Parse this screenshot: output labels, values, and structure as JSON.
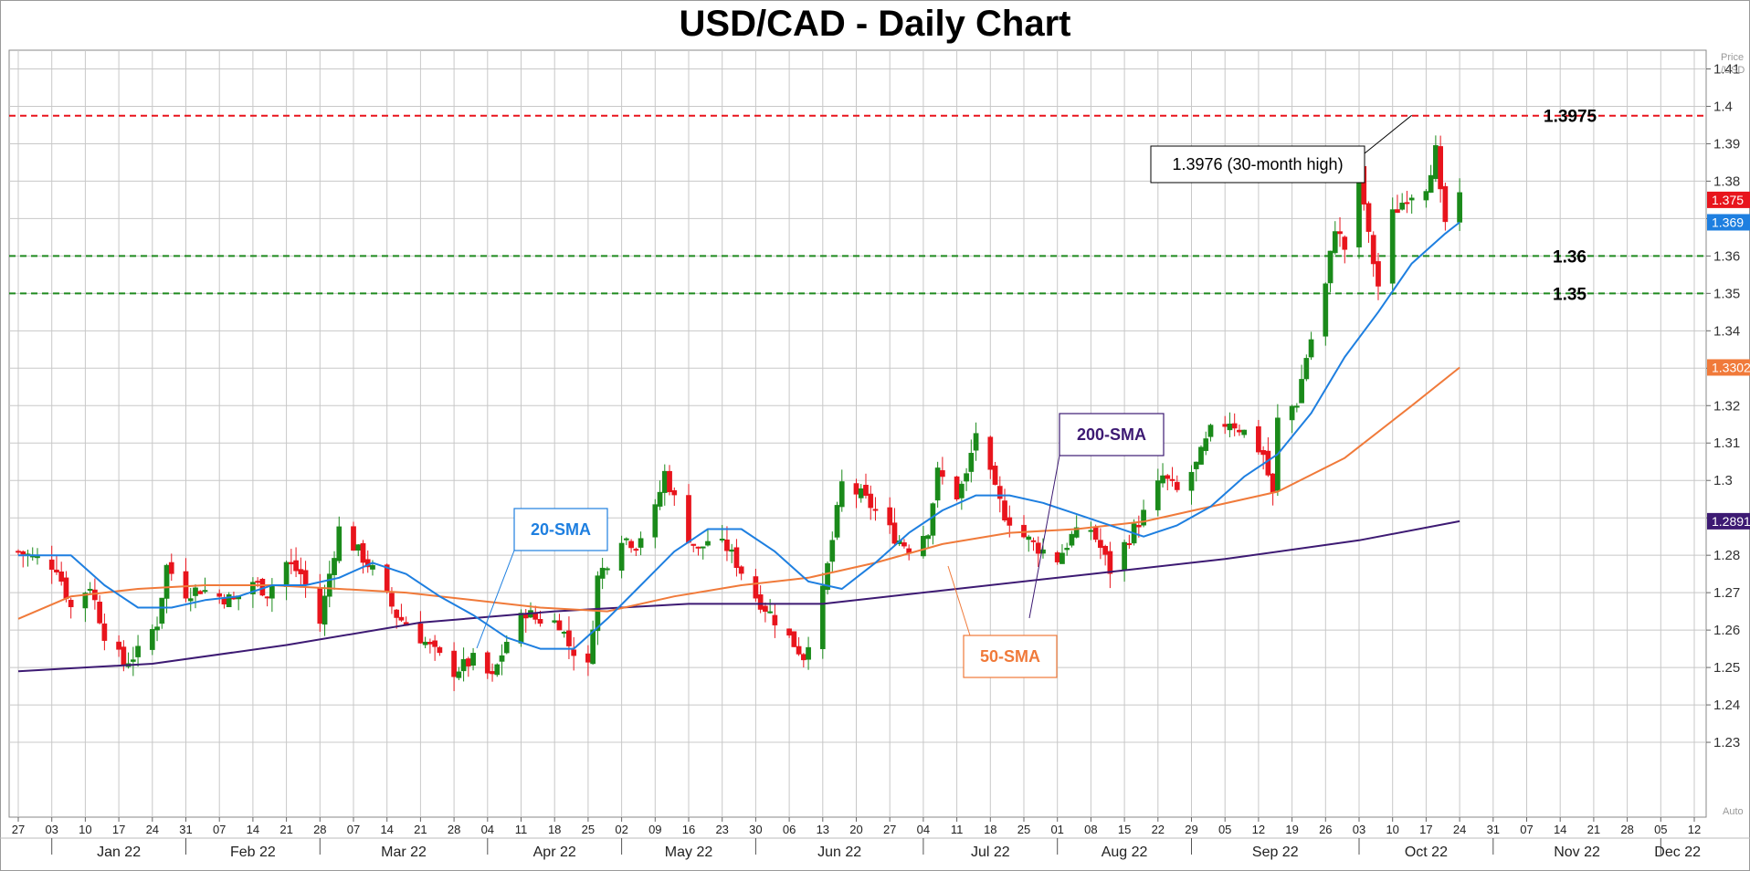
{
  "chart_data": {
    "type": "candlestick",
    "title": "USD/CAD - Daily Chart",
    "axis_unit_label": [
      "Price",
      "/USD"
    ],
    "auto_label": "Auto",
    "ylim": [
      1.21,
      1.415
    ],
    "y_ticks": [
      "1.23",
      "1.24",
      "1.25",
      "1.26",
      "1.27",
      "1.28",
      "1.29",
      "1.3",
      "1.31",
      "1.32",
      "1.33",
      "1.34",
      "1.35",
      "1.36",
      "1.37",
      "1.38",
      "1.39",
      "1.4",
      "1.41"
    ],
    "x_range": [
      "2021-12-27",
      "2022-12-12"
    ],
    "x_ticks": [
      "27",
      "03",
      "10",
      "17",
      "24",
      "31",
      "07",
      "14",
      "21",
      "28",
      "07",
      "14",
      "21",
      "28",
      "04",
      "11",
      "18",
      "25",
      "02",
      "09",
      "16",
      "23",
      "30",
      "06",
      "13",
      "20",
      "27",
      "04",
      "11",
      "18",
      "25",
      "01",
      "08",
      "15",
      "22",
      "29",
      "05",
      "12",
      "19",
      "26",
      "03",
      "10",
      "17",
      "24",
      "31",
      "07",
      "14",
      "21",
      "28",
      "05",
      "12"
    ],
    "month_labels": [
      {
        "date": "2022-01-03",
        "label": "Jan 22"
      },
      {
        "date": "2022-01-31",
        "label": "Feb 22"
      },
      {
        "date": "2022-02-28",
        "label": "Mar 22"
      },
      {
        "date": "2022-04-04",
        "label": "Apr 22"
      },
      {
        "date": "2022-05-02",
        "label": "May 22"
      },
      {
        "date": "2022-05-30",
        "label": "Jun 22"
      },
      {
        "date": "2022-07-04",
        "label": "Jul 22"
      },
      {
        "date": "2022-08-01",
        "label": "Aug 22"
      },
      {
        "date": "2022-08-29",
        "label": "Sep 22"
      },
      {
        "date": "2022-10-03",
        "label": "Oct 22"
      },
      {
        "date": "2022-10-31",
        "label": "Nov 22"
      },
      {
        "date": "2022-12-05",
        "label": "Dec 22"
      }
    ],
    "close_path": [
      [
        "2021-12-27",
        1.281
      ],
      [
        "2022-01-04",
        1.277
      ],
      [
        "2022-01-07",
        1.266
      ],
      [
        "2022-01-11",
        1.272
      ],
      [
        "2022-01-14",
        1.259
      ],
      [
        "2022-01-18",
        1.251
      ],
      [
        "2022-01-21",
        1.254
      ],
      [
        "2022-01-25",
        1.262
      ],
      [
        "2022-01-27",
        1.277
      ],
      [
        "2022-01-31",
        1.27
      ],
      [
        "2022-02-03",
        1.271
      ],
      [
        "2022-02-07",
        1.269
      ],
      [
        "2022-02-10",
        1.268
      ],
      [
        "2022-02-14",
        1.273
      ],
      [
        "2022-02-17",
        1.27
      ],
      [
        "2022-02-21",
        1.278
      ],
      [
        "2022-02-24",
        1.275
      ],
      [
        "2022-02-28",
        1.262
      ],
      [
        "2022-03-02",
        1.275
      ],
      [
        "2022-03-04",
        1.287
      ],
      [
        "2022-03-08",
        1.281
      ],
      [
        "2022-03-11",
        1.276
      ],
      [
        "2022-03-16",
        1.264
      ],
      [
        "2022-03-21",
        1.258
      ],
      [
        "2022-03-24",
        1.254
      ],
      [
        "2022-03-28",
        1.249
      ],
      [
        "2022-04-01",
        1.252
      ],
      [
        "2022-04-05",
        1.247
      ],
      [
        "2022-04-08",
        1.257
      ],
      [
        "2022-04-12",
        1.265
      ],
      [
        "2022-04-14",
        1.263
      ],
      [
        "2022-04-19",
        1.262
      ],
      [
        "2022-04-21",
        1.256
      ],
      [
        "2022-04-25",
        1.25
      ],
      [
        "2022-04-27",
        1.274
      ],
      [
        "2022-05-02",
        1.285
      ],
      [
        "2022-05-05",
        1.283
      ],
      [
        "2022-05-09",
        1.292
      ],
      [
        "2022-05-11",
        1.302
      ],
      [
        "2022-05-13",
        1.295
      ],
      [
        "2022-05-16",
        1.285
      ],
      [
        "2022-05-18",
        1.281
      ],
      [
        "2022-05-20",
        1.284
      ],
      [
        "2022-05-24",
        1.282
      ],
      [
        "2022-05-26",
        1.278
      ],
      [
        "2022-05-30",
        1.269
      ],
      [
        "2022-06-01",
        1.266
      ],
      [
        "2022-06-06",
        1.258
      ],
      [
        "2022-06-09",
        1.253
      ],
      [
        "2022-06-13",
        1.27
      ],
      [
        "2022-06-15",
        1.284
      ],
      [
        "2022-06-17",
        1.299
      ],
      [
        "2022-06-21",
        1.296
      ],
      [
        "2022-06-24",
        1.292
      ],
      [
        "2022-06-28",
        1.285
      ],
      [
        "2022-07-01",
        1.282
      ],
      [
        "2022-07-05",
        1.287
      ],
      [
        "2022-07-07",
        1.302
      ],
      [
        "2022-07-11",
        1.296
      ],
      [
        "2022-07-13",
        1.301
      ],
      [
        "2022-07-15",
        1.313
      ],
      [
        "2022-07-19",
        1.297
      ],
      [
        "2022-07-21",
        1.291
      ],
      [
        "2022-07-25",
        1.285
      ],
      [
        "2022-07-28",
        1.282
      ],
      [
        "2022-08-01",
        1.279
      ],
      [
        "2022-08-04",
        1.285
      ],
      [
        "2022-08-08",
        1.287
      ],
      [
        "2022-08-10",
        1.282
      ],
      [
        "2022-08-12",
        1.276
      ],
      [
        "2022-08-16",
        1.285
      ],
      [
        "2022-08-19",
        1.291
      ],
      [
        "2022-08-23",
        1.301
      ],
      [
        "2022-08-26",
        1.297
      ],
      [
        "2022-08-30",
        1.304
      ],
      [
        "2022-09-02",
        1.313
      ],
      [
        "2022-09-06",
        1.316
      ],
      [
        "2022-09-09",
        1.313
      ],
      [
        "2022-09-13",
        1.307
      ],
      [
        "2022-09-15",
        1.296
      ],
      [
        "2022-09-16",
        1.316
      ],
      [
        "2022-09-20",
        1.321
      ],
      [
        "2022-09-22",
        1.333
      ],
      [
        "2022-09-26",
        1.352
      ],
      [
        "2022-09-28",
        1.368
      ],
      [
        "2022-09-30",
        1.362
      ],
      [
        "2022-10-03",
        1.383
      ],
      [
        "2022-10-05",
        1.365
      ],
      [
        "2022-10-07",
        1.352
      ],
      [
        "2022-10-10",
        1.371
      ],
      [
        "2022-10-13",
        1.376
      ],
      [
        "2022-10-17",
        1.379
      ],
      [
        "2022-10-19",
        1.388
      ],
      [
        "2022-10-20",
        1.376
      ],
      [
        "2022-10-21",
        1.369
      ],
      [
        "2022-10-24",
        1.375
      ]
    ],
    "sma20": [
      [
        "2021-12-27",
        1.28
      ],
      [
        "2022-01-07",
        1.28
      ],
      [
        "2022-01-14",
        1.272
      ],
      [
        "2022-01-21",
        1.266
      ],
      [
        "2022-01-28",
        1.266
      ],
      [
        "2022-02-04",
        1.268
      ],
      [
        "2022-02-11",
        1.269
      ],
      [
        "2022-02-18",
        1.272
      ],
      [
        "2022-02-25",
        1.272
      ],
      [
        "2022-03-04",
        1.274
      ],
      [
        "2022-03-11",
        1.278
      ],
      [
        "2022-03-18",
        1.275
      ],
      [
        "2022-03-25",
        1.269
      ],
      [
        "2022-04-01",
        1.264
      ],
      [
        "2022-04-08",
        1.258
      ],
      [
        "2022-04-15",
        1.255
      ],
      [
        "2022-04-22",
        1.255
      ],
      [
        "2022-04-29",
        1.263
      ],
      [
        "2022-05-06",
        1.272
      ],
      [
        "2022-05-13",
        1.281
      ],
      [
        "2022-05-20",
        1.287
      ],
      [
        "2022-05-27",
        1.287
      ],
      [
        "2022-06-03",
        1.281
      ],
      [
        "2022-06-10",
        1.273
      ],
      [
        "2022-06-17",
        1.271
      ],
      [
        "2022-06-24",
        1.278
      ],
      [
        "2022-07-01",
        1.286
      ],
      [
        "2022-07-08",
        1.292
      ],
      [
        "2022-07-15",
        1.296
      ],
      [
        "2022-07-22",
        1.296
      ],
      [
        "2022-07-29",
        1.294
      ],
      [
        "2022-08-05",
        1.291
      ],
      [
        "2022-08-12",
        1.288
      ],
      [
        "2022-08-19",
        1.285
      ],
      [
        "2022-08-26",
        1.288
      ],
      [
        "2022-09-02",
        1.293
      ],
      [
        "2022-09-09",
        1.301
      ],
      [
        "2022-09-16",
        1.307
      ],
      [
        "2022-09-23",
        1.318
      ],
      [
        "2022-09-30",
        1.333
      ],
      [
        "2022-10-07",
        1.345
      ],
      [
        "2022-10-14",
        1.358
      ],
      [
        "2022-10-21",
        1.366
      ],
      [
        "2022-10-24",
        1.369
      ]
    ],
    "sma50": [
      [
        "2021-12-27",
        1.263
      ],
      [
        "2022-01-07",
        1.269
      ],
      [
        "2022-01-21",
        1.271
      ],
      [
        "2022-02-04",
        1.272
      ],
      [
        "2022-02-18",
        1.272
      ],
      [
        "2022-03-04",
        1.271
      ],
      [
        "2022-03-18",
        1.27
      ],
      [
        "2022-04-01",
        1.268
      ],
      [
        "2022-04-15",
        1.266
      ],
      [
        "2022-04-29",
        1.265
      ],
      [
        "2022-05-13",
        1.269
      ],
      [
        "2022-05-27",
        1.272
      ],
      [
        "2022-06-10",
        1.274
      ],
      [
        "2022-06-24",
        1.278
      ],
      [
        "2022-07-08",
        1.283
      ],
      [
        "2022-07-22",
        1.286
      ],
      [
        "2022-08-05",
        1.287
      ],
      [
        "2022-08-19",
        1.289
      ],
      [
        "2022-09-02",
        1.293
      ],
      [
        "2022-09-16",
        1.297
      ],
      [
        "2022-09-30",
        1.306
      ],
      [
        "2022-10-14",
        1.32
      ],
      [
        "2022-10-24",
        1.3302
      ]
    ],
    "sma200": [
      [
        "2021-12-27",
        1.249
      ],
      [
        "2022-01-24",
        1.251
      ],
      [
        "2022-02-21",
        1.256
      ],
      [
        "2022-03-21",
        1.262
      ],
      [
        "2022-04-18",
        1.265
      ],
      [
        "2022-05-16",
        1.267
      ],
      [
        "2022-06-13",
        1.267
      ],
      [
        "2022-07-11",
        1.271
      ],
      [
        "2022-08-08",
        1.275
      ],
      [
        "2022-09-05",
        1.279
      ],
      [
        "2022-10-03",
        1.284
      ],
      [
        "2022-10-24",
        1.2891
      ]
    ],
    "levels": [
      {
        "label": "1.3975",
        "value": 1.3975,
        "color": "#e8141c",
        "style": "dashed"
      },
      {
        "label": "1.36",
        "value": 1.36,
        "color": "#1f8a1f",
        "style": "dashed"
      },
      {
        "label": "1.35",
        "value": 1.35,
        "color": "#1f8a1f",
        "style": "dashed"
      }
    ],
    "last_value_tags": [
      {
        "label": "1.375",
        "value": 1.375,
        "color": "#e8141c"
      },
      {
        "label": "1.369",
        "value": 1.369,
        "color": "#1e7fe0"
      },
      {
        "label": "1.3302",
        "value": 1.3302,
        "color": "#f07a3a"
      },
      {
        "label": "1.2891",
        "value": 1.2891,
        "color": "#3d1a73"
      }
    ],
    "annotations": {
      "high": {
        "label": "1.3976 (30-month high)",
        "date": "2022-10-14",
        "value": 1.3976
      },
      "sma20": {
        "label": "20-SMA",
        "color": "#1e7fe0"
      },
      "sma50": {
        "label": "50-SMA",
        "color": "#f07a3a"
      },
      "sma200": {
        "label": "200-SMA",
        "color": "#3d1a73"
      }
    },
    "colors": {
      "up": "#1a8a1a",
      "down": "#e8141c",
      "sma20": "#1e7fe0",
      "sma50": "#f07a3a",
      "sma200": "#3d1a73",
      "grid": "#c8c8c8"
    }
  }
}
